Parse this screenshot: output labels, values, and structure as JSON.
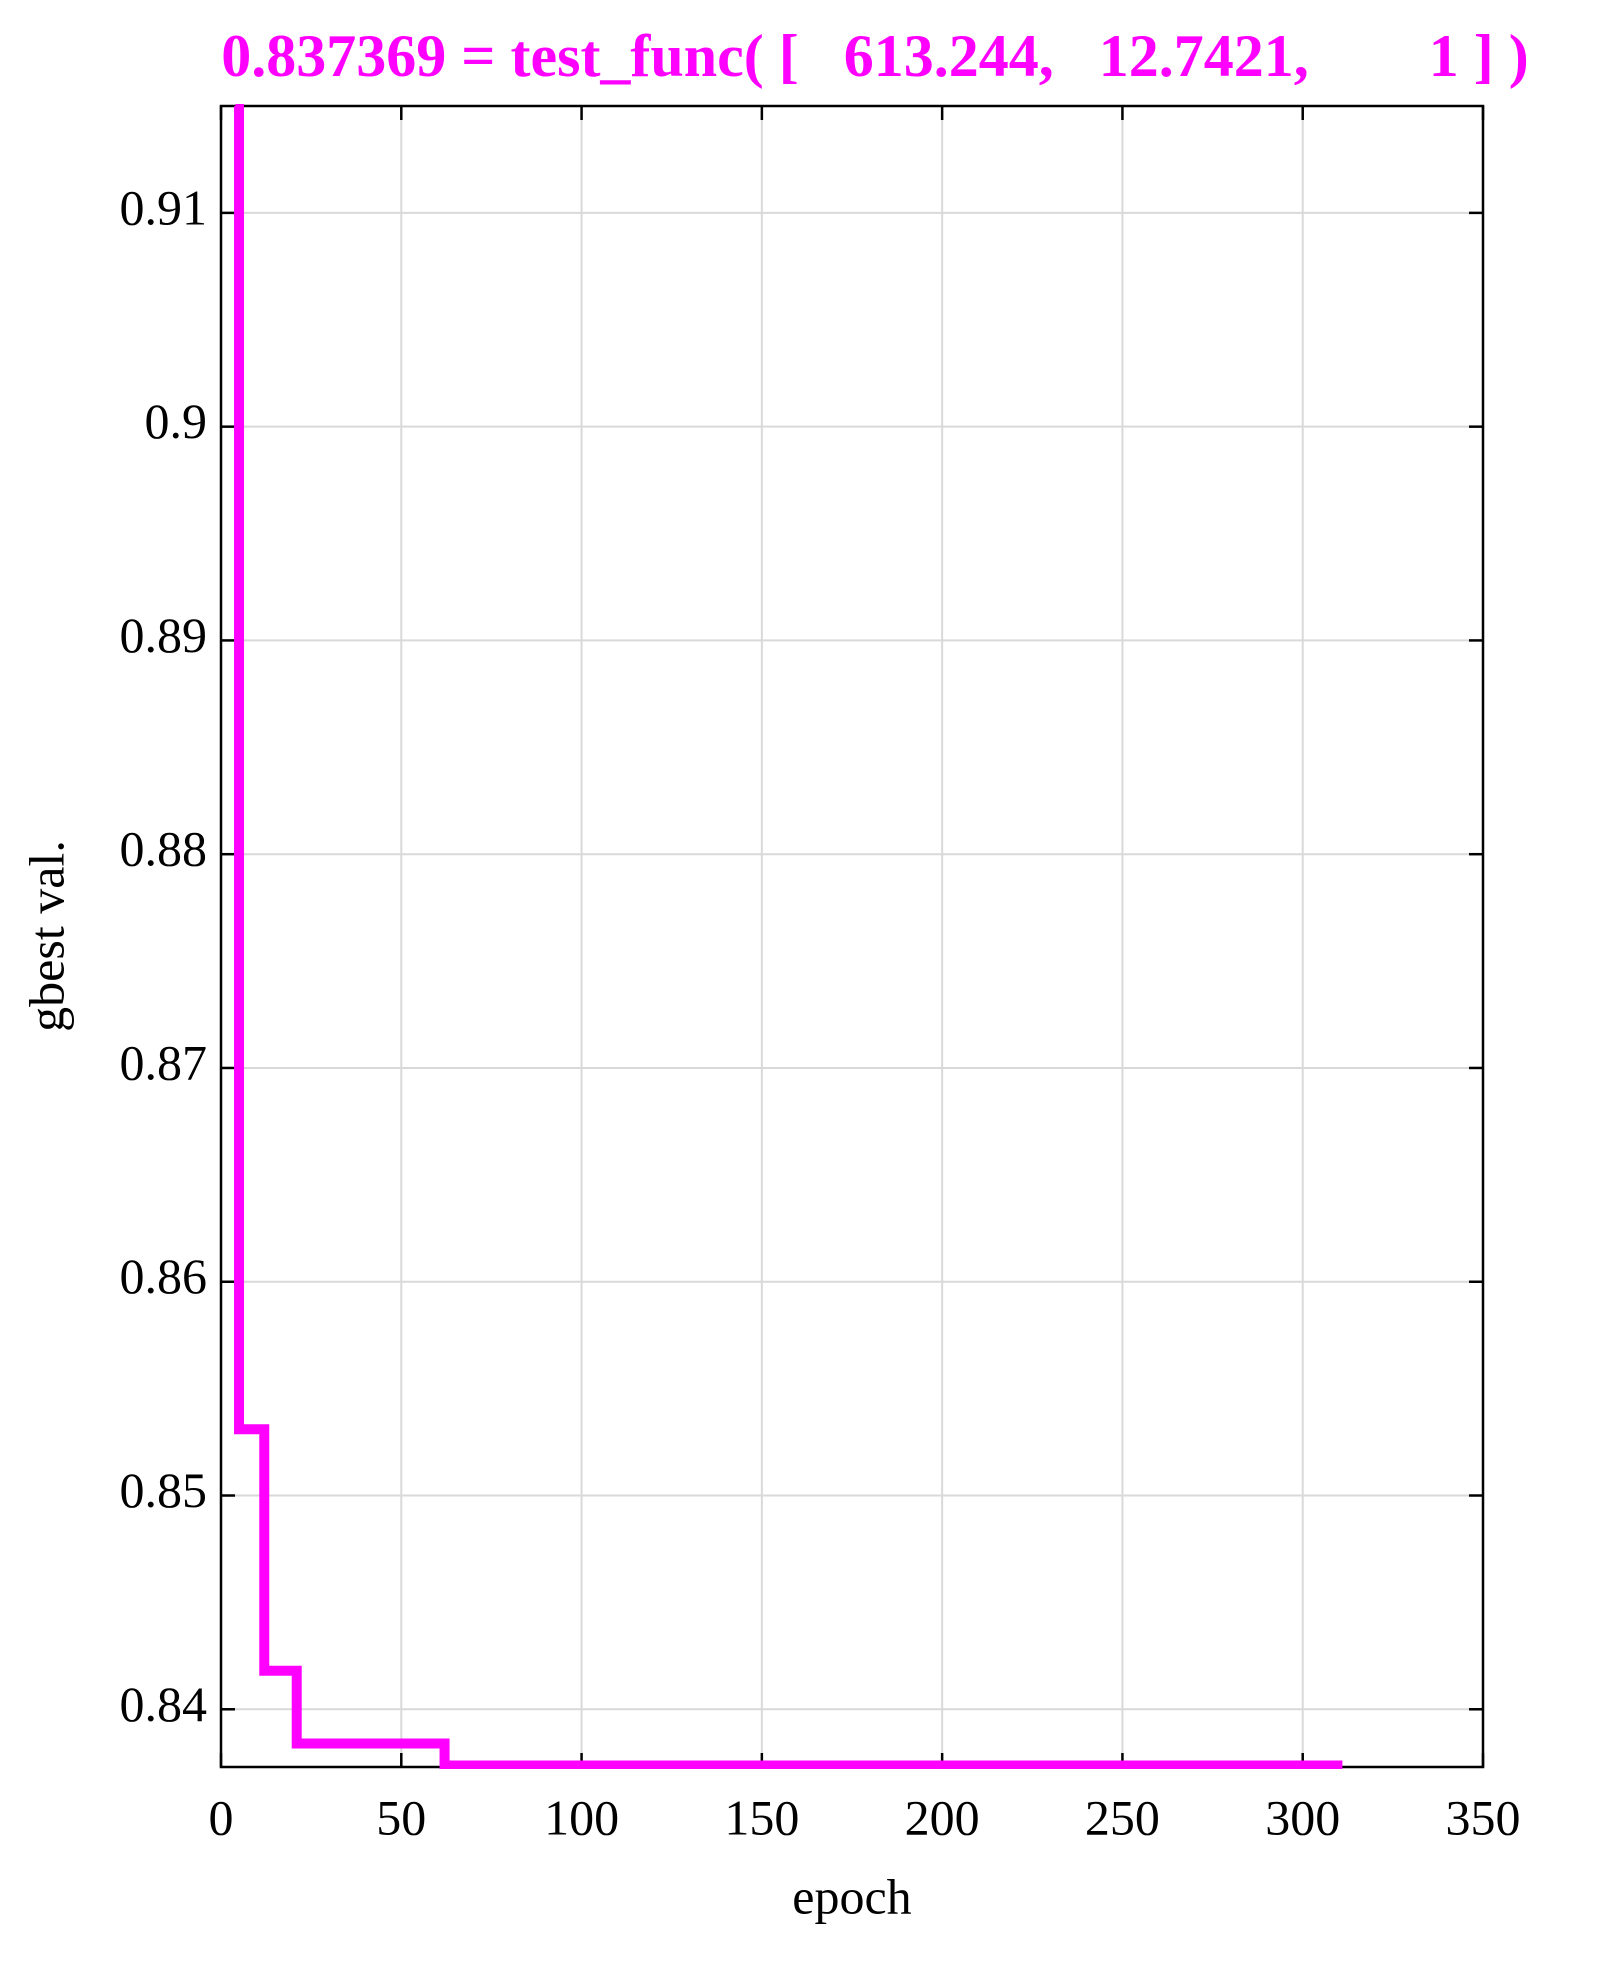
{
  "chart_data": {
    "type": "line",
    "title": "0.837369 = test_func( [   613.244,   12.7421,        1 ] )",
    "xlabel": "epoch",
    "ylabel": "gbest val.",
    "step": "post",
    "x": [
      4,
      5,
      12,
      21,
      62,
      311
    ],
    "series": [
      {
        "name": "gbest",
        "color": "#ff00ff",
        "values": [
          0.915,
          0.8531,
          0.8418,
          0.8384,
          0.837369,
          0.837369
        ]
      }
    ],
    "xlim": [
      0,
      350
    ],
    "xticks": [
      0,
      50,
      100,
      150,
      200,
      250,
      300,
      350
    ],
    "ylim": [
      0.8373,
      0.915
    ],
    "yticks": [
      0.84,
      0.85,
      0.86,
      0.87,
      0.88,
      0.89,
      0.9,
      0.91
    ],
    "grid": true
  }
}
